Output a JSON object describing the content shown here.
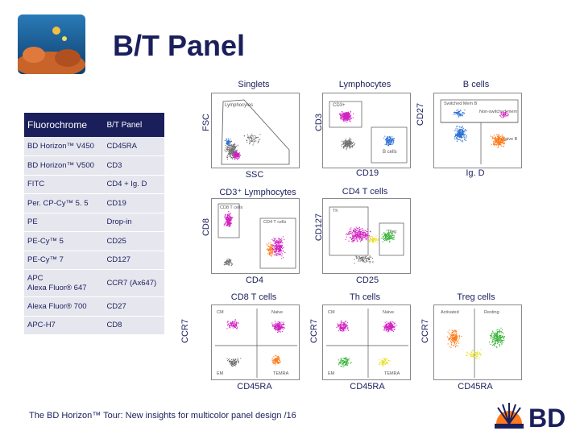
{
  "header": {
    "title": "B/T Panel",
    "logo_icon": "coral-reef-photo-icon"
  },
  "table": {
    "col1": "Fluorochrome",
    "col2": "B/T Panel",
    "rows": [
      {
        "fluor": "BD Horizon™ V450",
        "marker": "CD45RA"
      },
      {
        "fluor": "BD Horizon™ V500",
        "marker": "CD3"
      },
      {
        "fluor": "FITC",
        "marker": "CD4 + Ig. D"
      },
      {
        "fluor": "Per. CP-Cy™ 5. 5",
        "marker": "CD19"
      },
      {
        "fluor": "PE",
        "marker": "Drop-in"
      },
      {
        "fluor": "PE-Cy™ 5",
        "marker": "CD25"
      },
      {
        "fluor": "PE-Cy™ 7",
        "marker": "CD127"
      },
      {
        "fluor": "APC\nAlexa Fluor® 647",
        "marker": "CCR7 (Ax647)"
      },
      {
        "fluor": "Alexa Fluor® 700",
        "marker": "CD27"
      },
      {
        "fluor": "APC-H7",
        "marker": "CD8"
      }
    ]
  },
  "plots": {
    "singlets": {
      "title": "Singlets",
      "x": "SSC",
      "y": "FSC",
      "gate1": "Lymphocytes"
    },
    "lymphocytes": {
      "title": "Lymphocytes",
      "x": "CD19",
      "y": "CD3",
      "gate1": "CD3+",
      "gate2": "B cells"
    },
    "bcells": {
      "title": "B cells",
      "x": "Ig. D",
      "y": "CD27",
      "gate1": "Switched Mem B",
      "gate2": "Non-switched mem",
      "gate3": "Naive B"
    },
    "cd3": {
      "title": "CD3⁺ Lymphocytes",
      "x": "CD4",
      "y": "CD8",
      "gate1": "CD8 T cells",
      "gate2": "CD4 T cells"
    },
    "cd4": {
      "title": "CD4 T cells",
      "x": "CD25",
      "y": "CD127",
      "gate1": "Th",
      "gate2": "Treg"
    },
    "cd8t": {
      "title": "CD8 T cells",
      "x": "CD45RA",
      "y": "CCR7",
      "gate1": "CM",
      "gate2": "Naive",
      "gate3": "EM",
      "gate4": "TEMRA"
    },
    "th": {
      "title": "Th cells",
      "x": "CD45RA",
      "y": "CCR7",
      "gate1": "CM",
      "gate2": "Naive",
      "gate3": "EM",
      "gate4": "TEMRA"
    },
    "treg": {
      "title": "Treg cells",
      "x": "CD45RA",
      "y": "CCR7",
      "gate1": "Activated",
      "gate2": "Resting"
    }
  },
  "footer": {
    "text": "The BD Horizon™ Tour: New insights for multicolor panel design /16",
    "logo_text": "BD",
    "logo_icon": "bd-sunburst-logo-icon"
  },
  "colors": {
    "navy": "#1a1f5c",
    "magenta": "#d020c0",
    "orange": "#ff7a1a",
    "blue": "#2a6fd6",
    "gray": "#707070",
    "green": "#30b030",
    "yellow": "#e8e020"
  }
}
